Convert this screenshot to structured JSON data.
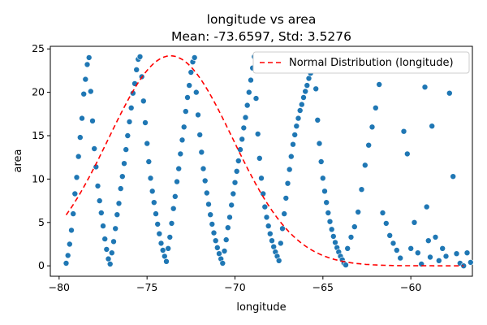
{
  "chart_data": {
    "type": "scatter",
    "title": "longitude vs area",
    "subtitle": "Mean: -73.6597, Std: 3.5276",
    "xlabel": "longitude",
    "ylabel": "area",
    "xlim": [
      -80.5,
      -56.5
    ],
    "ylim": [
      -1.2,
      25.3
    ],
    "xticks": [
      -80,
      -75,
      -70,
      -65,
      -60
    ],
    "yticks": [
      0,
      5,
      10,
      15,
      20,
      25
    ],
    "grid": false,
    "legend": {
      "position": "top-right",
      "entries": [
        "Normal Distribution (longitude)"
      ]
    },
    "colors": {
      "points": "#1f77b4",
      "curve": "#ff0000"
    },
    "curve": {
      "name": "Normal Distribution (longitude)",
      "mean": -73.6597,
      "std": 3.5276,
      "peak_y": 24.2,
      "style": "dashed"
    },
    "series": [
      {
        "note": "Dense point cloud; representative points only",
        "points": [
          [
            -79.6,
            0.3
          ],
          [
            -79.5,
            1.2
          ],
          [
            -79.4,
            2.5
          ],
          [
            -79.3,
            4.1
          ],
          [
            -79.2,
            6.0
          ],
          [
            -79.1,
            8.3
          ],
          [
            -79.0,
            10.2
          ],
          [
            -78.9,
            12.6
          ],
          [
            -78.8,
            14.8
          ],
          [
            -78.7,
            17.0
          ],
          [
            -78.6,
            19.8
          ],
          [
            -78.5,
            21.5
          ],
          [
            -78.4,
            23.2
          ],
          [
            -78.3,
            24.0
          ],
          [
            -78.2,
            20.1
          ],
          [
            -78.1,
            16.7
          ],
          [
            -78.0,
            13.5
          ],
          [
            -77.9,
            11.4
          ],
          [
            -77.8,
            9.2
          ],
          [
            -77.7,
            7.5
          ],
          [
            -77.6,
            6.1
          ],
          [
            -77.5,
            4.6
          ],
          [
            -77.4,
            3.1
          ],
          [
            -77.3,
            1.9
          ],
          [
            -77.2,
            0.8
          ],
          [
            -77.1,
            0.2
          ],
          [
            -77.0,
            1.5
          ],
          [
            -76.9,
            2.8
          ],
          [
            -76.8,
            4.3
          ],
          [
            -76.7,
            5.9
          ],
          [
            -76.6,
            7.2
          ],
          [
            -76.5,
            8.9
          ],
          [
            -76.4,
            10.3
          ],
          [
            -76.3,
            11.8
          ],
          [
            -76.2,
            13.4
          ],
          [
            -76.1,
            15.0
          ],
          [
            -76.0,
            16.6
          ],
          [
            -75.9,
            18.2
          ],
          [
            -75.8,
            19.9
          ],
          [
            -75.7,
            21.0
          ],
          [
            -75.6,
            22.6
          ],
          [
            -75.5,
            23.8
          ],
          [
            -75.4,
            24.1
          ],
          [
            -75.3,
            21.8
          ],
          [
            -75.2,
            19.0
          ],
          [
            -75.1,
            16.5
          ],
          [
            -75.0,
            14.1
          ],
          [
            -74.9,
            12.0
          ],
          [
            -74.8,
            10.1
          ],
          [
            -74.7,
            8.6
          ],
          [
            -74.6,
            7.3
          ],
          [
            -74.5,
            6.0
          ],
          [
            -74.4,
            4.8
          ],
          [
            -74.3,
            3.7
          ],
          [
            -74.2,
            2.6
          ],
          [
            -74.1,
            1.8
          ],
          [
            -74.0,
            1.1
          ],
          [
            -73.9,
            0.5
          ],
          [
            -73.8,
            2.0
          ],
          [
            -73.7,
            3.3
          ],
          [
            -73.6,
            4.9
          ],
          [
            -73.5,
            6.6
          ],
          [
            -73.4,
            8.0
          ],
          [
            -73.3,
            9.7
          ],
          [
            -73.2,
            11.2
          ],
          [
            -73.1,
            12.9
          ],
          [
            -73.0,
            14.5
          ],
          [
            -72.9,
            16.0
          ],
          [
            -72.8,
            17.8
          ],
          [
            -72.7,
            19.4
          ],
          [
            -72.6,
            20.8
          ],
          [
            -72.5,
            22.3
          ],
          [
            -72.4,
            23.5
          ],
          [
            -72.3,
            24.0
          ],
          [
            -72.2,
            20.0
          ],
          [
            -72.1,
            17.4
          ],
          [
            -72.0,
            15.1
          ],
          [
            -71.9,
            13.1
          ],
          [
            -71.8,
            11.2
          ],
          [
            -71.7,
            9.8
          ],
          [
            -71.6,
            8.4
          ],
          [
            -71.5,
            7.1
          ],
          [
            -71.4,
            5.9
          ],
          [
            -71.3,
            4.8
          ],
          [
            -71.2,
            3.8
          ],
          [
            -71.1,
            2.9
          ],
          [
            -71.0,
            2.1
          ],
          [
            -70.9,
            1.4
          ],
          [
            -70.8,
            0.8
          ],
          [
            -70.7,
            0.3
          ],
          [
            -70.6,
            1.7
          ],
          [
            -70.5,
            3.0
          ],
          [
            -70.4,
            4.4
          ],
          [
            -70.3,
            5.6
          ],
          [
            -70.2,
            7.0
          ],
          [
            -70.1,
            8.3
          ],
          [
            -70.0,
            9.6
          ],
          [
            -69.9,
            10.9
          ],
          [
            -69.8,
            12.1
          ],
          [
            -69.7,
            13.4
          ],
          [
            -69.6,
            14.6
          ],
          [
            -69.5,
            15.9
          ],
          [
            -69.4,
            17.1
          ],
          [
            -69.3,
            18.5
          ],
          [
            -69.2,
            20.0
          ],
          [
            -69.1,
            21.4
          ],
          [
            -69.0,
            22.8
          ],
          [
            -68.9,
            24.1
          ],
          [
            -68.8,
            19.3
          ],
          [
            -68.7,
            15.2
          ],
          [
            -68.6,
            12.4
          ],
          [
            -68.5,
            10.1
          ],
          [
            -68.4,
            8.3
          ],
          [
            -68.3,
            6.8
          ],
          [
            -68.2,
            5.6
          ],
          [
            -68.1,
            4.6
          ],
          [
            -68.0,
            3.7
          ],
          [
            -67.9,
            2.9
          ],
          [
            -67.8,
            2.2
          ],
          [
            -67.7,
            1.6
          ],
          [
            -67.6,
            1.1
          ],
          [
            -67.5,
            0.6
          ],
          [
            -67.4,
            2.6
          ],
          [
            -67.3,
            4.3
          ],
          [
            -67.2,
            6.0
          ],
          [
            -67.1,
            7.8
          ],
          [
            -67.0,
            9.5
          ],
          [
            -66.9,
            11.1
          ],
          [
            -66.8,
            12.6
          ],
          [
            -66.7,
            14.0
          ],
          [
            -66.6,
            15.1
          ],
          [
            -66.5,
            16.1
          ],
          [
            -66.4,
            17.0
          ],
          [
            -66.3,
            17.9
          ],
          [
            -66.2,
            18.6
          ],
          [
            -66.1,
            19.4
          ],
          [
            -66.0,
            20.1
          ],
          [
            -65.9,
            20.8
          ],
          [
            -65.8,
            21.6
          ],
          [
            -65.7,
            22.2
          ],
          [
            -65.6,
            23.0
          ],
          [
            -65.5,
            23.6
          ],
          [
            -65.4,
            20.4
          ],
          [
            -65.3,
            16.8
          ],
          [
            -65.2,
            14.1
          ],
          [
            -65.1,
            12.0
          ],
          [
            -65.0,
            10.1
          ],
          [
            -64.9,
            8.6
          ],
          [
            -64.8,
            7.3
          ],
          [
            -64.7,
            6.1
          ],
          [
            -64.6,
            5.1
          ],
          [
            -64.5,
            4.2
          ],
          [
            -64.4,
            3.4
          ],
          [
            -64.3,
            2.7
          ],
          [
            -64.2,
            2.1
          ],
          [
            -64.1,
            1.6
          ],
          [
            -64.0,
            1.1
          ],
          [
            -63.9,
            0.7
          ],
          [
            -63.8,
            0.3
          ],
          [
            -63.7,
            0.1
          ],
          [
            -63.6,
            2.0
          ],
          [
            -63.4,
            3.3
          ],
          [
            -63.2,
            4.5
          ],
          [
            -63.0,
            6.2
          ],
          [
            -62.8,
            8.8
          ],
          [
            -62.6,
            11.6
          ],
          [
            -62.4,
            13.9
          ],
          [
            -62.2,
            16.0
          ],
          [
            -62.0,
            18.2
          ],
          [
            -61.8,
            20.9
          ],
          [
            -61.6,
            6.1
          ],
          [
            -61.4,
            4.9
          ],
          [
            -61.2,
            3.5
          ],
          [
            -61.0,
            2.6
          ],
          [
            -60.8,
            1.8
          ],
          [
            -60.6,
            0.9
          ],
          [
            -60.4,
            15.5
          ],
          [
            -60.2,
            12.9
          ],
          [
            -60.0,
            2.0
          ],
          [
            -59.8,
            5.0
          ],
          [
            -59.6,
            1.5
          ],
          [
            -59.4,
            0.2
          ],
          [
            -59.2,
            20.6
          ],
          [
            -59.1,
            6.8
          ],
          [
            -59.0,
            2.9
          ],
          [
            -58.9,
            1.0
          ],
          [
            -58.8,
            16.1
          ],
          [
            -58.6,
            3.3
          ],
          [
            -58.4,
            0.6
          ],
          [
            -58.2,
            2.0
          ],
          [
            -58.0,
            1.1
          ],
          [
            -57.8,
            19.9
          ],
          [
            -57.6,
            10.3
          ],
          [
            -57.4,
            1.4
          ],
          [
            -57.2,
            0.3
          ],
          [
            -57.0,
            0.0
          ],
          [
            -56.8,
            1.5
          ],
          [
            -56.6,
            0.4
          ]
        ]
      }
    ]
  }
}
